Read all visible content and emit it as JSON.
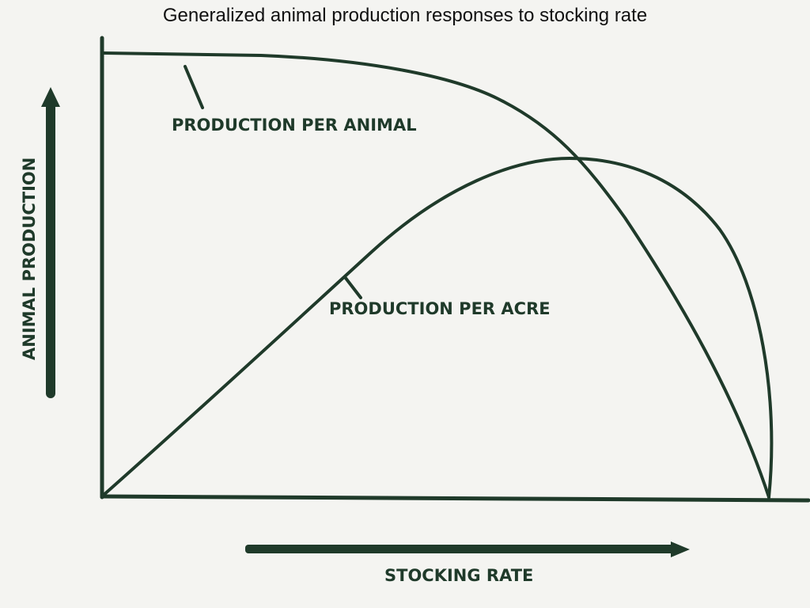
{
  "title": "Generalized animal production responses to stocking rate",
  "x_axis_label": "STOCKING RATE",
  "y_axis_label": "ANIMAL PRODUCTION",
  "curves": [
    {
      "label": "PRODUCTION PER ANIMAL"
    },
    {
      "label": "PRODUCTION PER ACRE"
    }
  ],
  "colors": {
    "ink": "#1f3a2a",
    "background": "#f4f4f1",
    "title": "#111111"
  }
}
